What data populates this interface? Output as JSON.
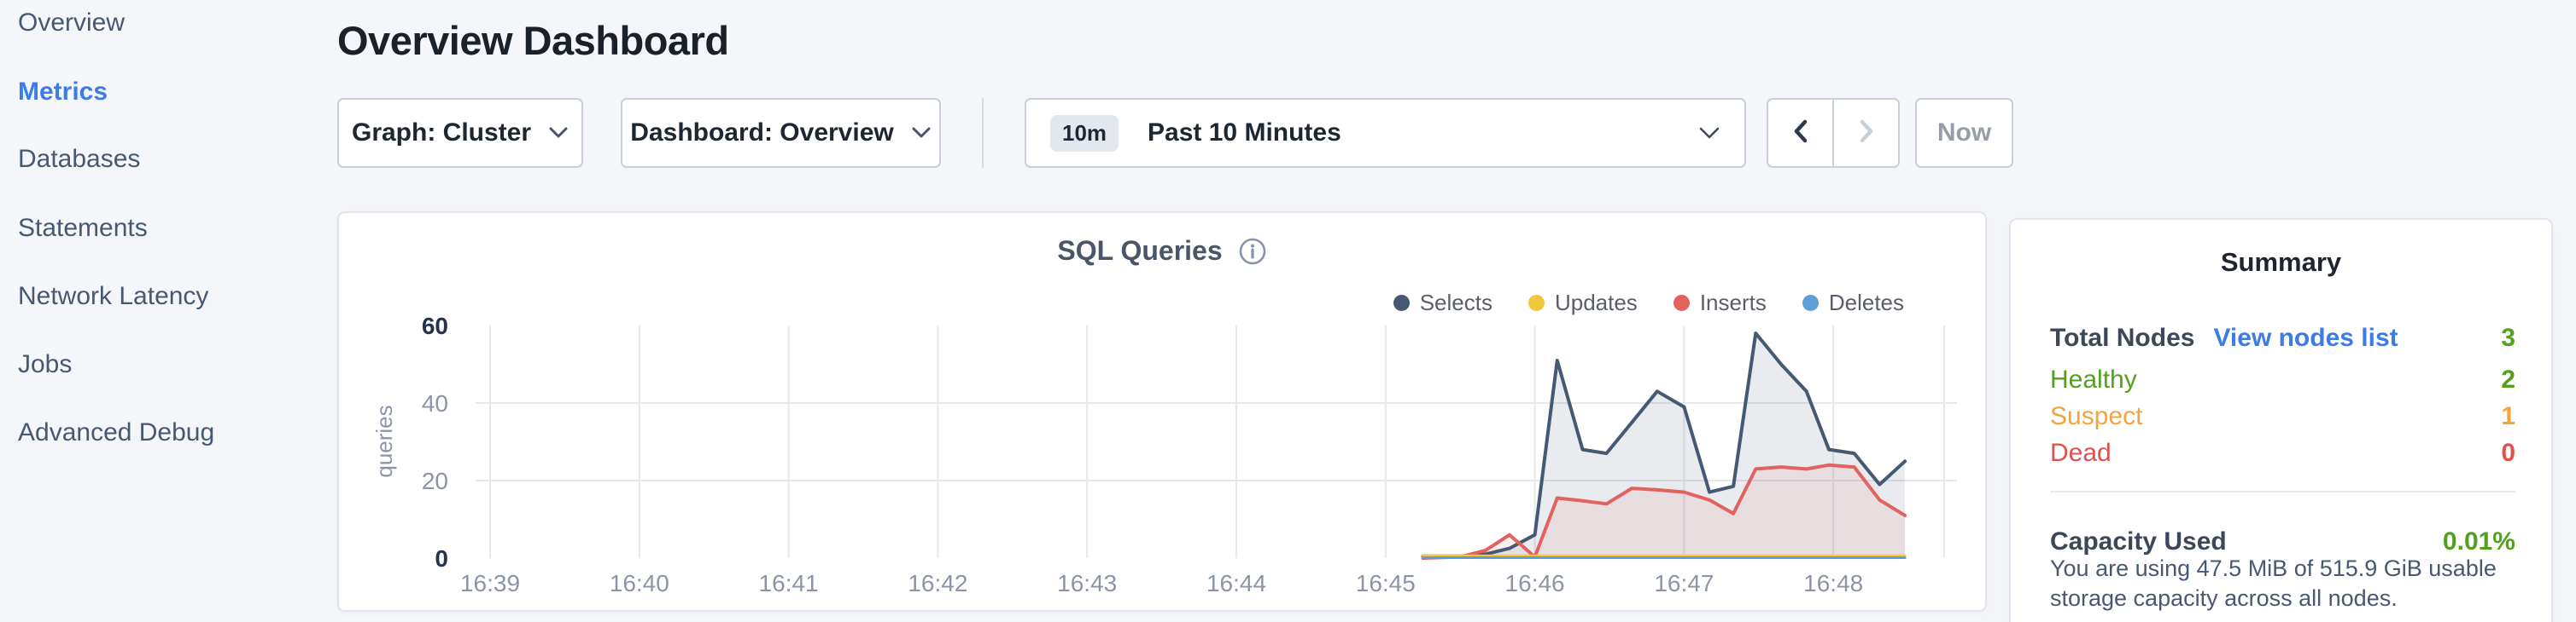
{
  "sidebar": {
    "items": [
      {
        "label": "Overview",
        "active": false
      },
      {
        "label": "Metrics",
        "active": true
      },
      {
        "label": "Databases",
        "active": false
      },
      {
        "label": "Statements",
        "active": false
      },
      {
        "label": "Network Latency",
        "active": false
      },
      {
        "label": "Jobs",
        "active": false
      },
      {
        "label": "Advanced Debug",
        "active": false
      }
    ]
  },
  "header": {
    "title": "Overview Dashboard"
  },
  "toolbar": {
    "graph_dropdown_label": "Graph: Cluster",
    "dashboard_dropdown_label": "Dashboard: Overview",
    "time_window": {
      "badge": "10m",
      "label": "Past 10 Minutes"
    },
    "now_label": "Now"
  },
  "chart_data": {
    "type": "area",
    "title": "SQL Queries",
    "ylabel": "queries",
    "ylim": [
      0,
      60
    ],
    "grid": true,
    "legend_position": "top-right",
    "x_unit": "minutes after 16:39",
    "x_ticks": [
      "16:39",
      "16:40",
      "16:41",
      "16:42",
      "16:43",
      "16:44",
      "16:45",
      "16:46",
      "16:47",
      "16:48"
    ],
    "y_ticks": [
      {
        "v": 0,
        "bold": true
      },
      {
        "v": 20,
        "bold": false
      },
      {
        "v": 40,
        "bold": false
      },
      {
        "v": 60,
        "bold": true
      }
    ],
    "x": [
      6.25,
      6.5,
      6.67,
      6.83,
      7.0,
      7.15,
      7.32,
      7.48,
      7.65,
      7.82,
      8.0,
      8.17,
      8.33,
      8.48,
      8.65,
      8.82,
      8.97,
      9.14,
      9.31,
      9.48
    ],
    "series": [
      {
        "name": "Selects",
        "color": "#475872",
        "fill": "rgba(71,88,114,0.12)",
        "values": [
          0.5,
          0.5,
          1,
          2.5,
          6,
          51,
          28,
          27,
          35,
          43,
          39,
          17,
          18.5,
          58,
          50,
          43,
          28,
          27,
          19,
          25
        ]
      },
      {
        "name": "Updates",
        "color": "#f2c63d",
        "fill": null,
        "values": [
          0.6,
          0.6,
          0.6,
          0.6,
          0.6,
          0.6,
          0.6,
          0.6,
          0.6,
          0.6,
          0.6,
          0.6,
          0.6,
          0.6,
          0.6,
          0.6,
          0.6,
          0.6,
          0.6,
          0.6
        ]
      },
      {
        "name": "Inserts",
        "color": "#e2625f",
        "fill": "rgba(226,98,95,0.10)",
        "values": [
          0,
          0.3,
          2,
          6,
          0.3,
          15.5,
          14.8,
          14,
          18,
          17.6,
          17,
          15,
          11.5,
          23,
          23.5,
          23,
          24,
          23.5,
          15,
          11
        ]
      },
      {
        "name": "Deletes",
        "color": "#5c9fd6",
        "fill": null,
        "values": [
          0.1,
          0.1,
          0.1,
          0.1,
          0.1,
          0.1,
          0.1,
          0.1,
          0.1,
          0.1,
          0.1,
          0.1,
          0.1,
          0.1,
          0.1,
          0.1,
          0.1,
          0.1,
          0.1,
          0.1
        ]
      }
    ],
    "colors": {
      "grid": "#e6e8ec",
      "axis_strong": "#25334d",
      "axis_light": "#8b95a5"
    }
  },
  "summary": {
    "title": "Summary",
    "total_nodes": {
      "label": "Total Nodes",
      "link": "View nodes list",
      "value": "3",
      "color": "#52a11c"
    },
    "rows": [
      {
        "label": "Healthy",
        "value": "2",
        "color": "#52a11c"
      },
      {
        "label": "Suspect",
        "value": "1",
        "color": "#f6a43a"
      },
      {
        "label": "Dead",
        "value": "0",
        "color": "#e2504c"
      }
    ],
    "capacity": {
      "label": "Capacity Used",
      "value": "0.01%",
      "color": "#52a11c",
      "caption": "You are using 47.5 MiB of 515.9 GiB usable storage capacity across all nodes."
    }
  }
}
